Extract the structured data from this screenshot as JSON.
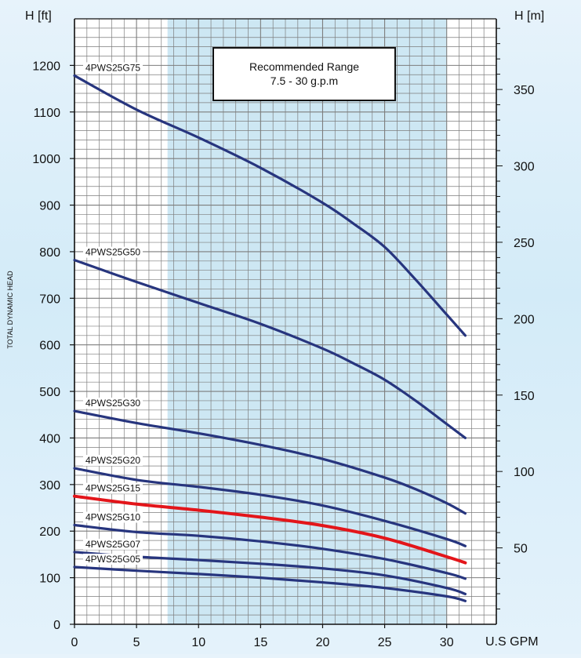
{
  "chart_data": {
    "type": "line",
    "title": "",
    "xlabel": "U.S GPM",
    "ylabel": "TOTAL DYNAMIC HEAD",
    "y_left_unit": "H [ft]",
    "y_right_unit": "H [m]",
    "xlim": [
      0,
      34
    ],
    "ylim": [
      0,
      1300
    ],
    "y2lim": [
      0,
      396.24
    ],
    "x_ticks": [
      0,
      5,
      10,
      15,
      20,
      25,
      30
    ],
    "y_ticks": [
      0,
      100,
      200,
      300,
      400,
      500,
      600,
      700,
      800,
      900,
      1000,
      1100,
      1200
    ],
    "y2_ticks": [
      50,
      100,
      150,
      200,
      250,
      300,
      350
    ],
    "grid": true,
    "recommended_range": {
      "x": [
        7.5,
        30
      ],
      "label_line1": "Recommended Range",
      "label_line2": "7.5 - 30 g.p.m",
      "fill": "#cde7f3"
    },
    "colors": {
      "default": "#27357e",
      "highlight": "#e3151a",
      "grid": "#7d7d7d",
      "axis": "#111111"
    },
    "series": [
      {
        "name": "4PWS25G75",
        "highlight": false,
        "x": [
          0,
          5,
          10,
          15,
          20,
          22.5,
          25,
          27.5,
          30,
          31.5
        ],
        "y": [
          1178,
          1105,
          1045,
          980,
          905,
          860,
          810,
          740,
          665,
          620
        ]
      },
      {
        "name": "4PWS25G50",
        "highlight": false,
        "x": [
          0,
          5,
          10,
          15,
          20,
          22.5,
          25,
          27.5,
          30,
          31.5
        ],
        "y": [
          782,
          735,
          690,
          645,
          592,
          560,
          525,
          480,
          430,
          400
        ]
      },
      {
        "name": "4PWS25G30",
        "highlight": false,
        "x": [
          0,
          5,
          10,
          15,
          20,
          25,
          27.5,
          30,
          31.5
        ],
        "y": [
          458,
          432,
          410,
          385,
          355,
          315,
          290,
          260,
          238
        ]
      },
      {
        "name": "4PWS25G20",
        "highlight": false,
        "x": [
          0,
          5,
          10,
          15,
          20,
          25,
          30,
          31.5
        ],
        "y": [
          335,
          310,
          295,
          278,
          255,
          222,
          183,
          168
        ]
      },
      {
        "name": "4PWS25G15",
        "highlight": true,
        "x": [
          0,
          5,
          10,
          15,
          20,
          25,
          30,
          31.5
        ],
        "y": [
          275,
          258,
          245,
          230,
          212,
          185,
          145,
          132
        ]
      },
      {
        "name": "4PWS25G10",
        "highlight": false,
        "x": [
          0,
          5,
          10,
          15,
          20,
          25,
          30,
          31.5
        ],
        "y": [
          213,
          198,
          190,
          178,
          162,
          140,
          110,
          98
        ]
      },
      {
        "name": "4PWS25G07",
        "highlight": false,
        "x": [
          0,
          5,
          10,
          15,
          20,
          25,
          30,
          31.5
        ],
        "y": [
          155,
          145,
          138,
          130,
          120,
          105,
          78,
          65
        ]
      },
      {
        "name": "4PWS25G05",
        "highlight": false,
        "x": [
          0,
          5,
          10,
          15,
          20,
          25,
          30,
          31.5
        ],
        "y": [
          123,
          115,
          108,
          100,
          90,
          78,
          60,
          50
        ]
      }
    ]
  }
}
